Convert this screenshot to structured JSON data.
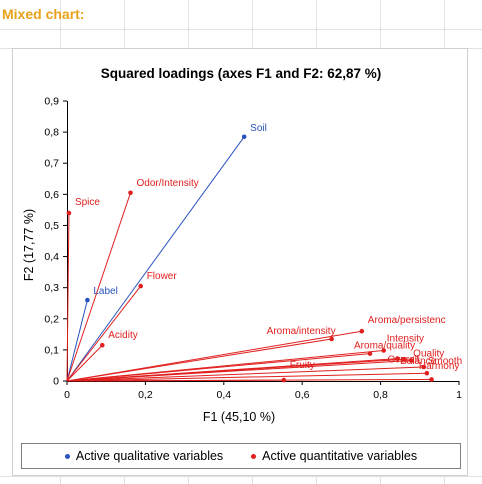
{
  "sheet": {
    "title": "Mixed chart:"
  },
  "colors": {
    "qualitative": "#2a52be",
    "quantitative": "#e0201f",
    "sheet_title": "#e8a21a"
  },
  "chart_data": {
    "type": "scatter",
    "title": "Squared loadings (axes F1 and F2: 62,87 %)",
    "xlabel": "F1 (45,10 %)",
    "ylabel": "F2 (17,77 %)",
    "xlim": [
      0,
      1
    ],
    "ylim": [
      0,
      0.9
    ],
    "x_ticks": [
      "0",
      "0,2",
      "0,4",
      "0,6",
      "0,8",
      "1"
    ],
    "y_ticks": [
      "0",
      "0,1",
      "0,2",
      "0,3",
      "0,4",
      "0,5",
      "0,6",
      "0,7",
      "0,8",
      "0,9"
    ],
    "rays_from_origin": true,
    "legend_position": "bottom",
    "series": [
      {
        "name": "Active qualitative variables",
        "points": [
          {
            "label": "Soil",
            "x": 0.452,
            "y": 0.785
          },
          {
            "label": "Label",
            "x": 0.052,
            "y": 0.26
          }
        ]
      },
      {
        "name": "Active quantitative variables",
        "points": [
          {
            "label": "Spice",
            "x": 0.005,
            "y": 0.54
          },
          {
            "label": "Odor/Intensity",
            "x": 0.162,
            "y": 0.605
          },
          {
            "label": "Flower",
            "x": 0.188,
            "y": 0.305
          },
          {
            "label": "Acidity",
            "x": 0.09,
            "y": 0.115
          },
          {
            "label": "Aroma/persistenc",
            "x": 0.752,
            "y": 0.16
          },
          {
            "label": "Aroma/intensity",
            "x": 0.675,
            "y": 0.135
          },
          {
            "label": "Intensity",
            "x": 0.808,
            "y": 0.098
          },
          {
            "label": "Aroma/quality",
            "x": 0.773,
            "y": 0.088
          },
          {
            "label": "Overall",
            "x": 0.843,
            "y": 0.072
          },
          {
            "label": "Quality",
            "x": 0.878,
            "y": 0.066
          },
          {
            "label": "Balance",
            "x": 0.86,
            "y": 0.07
          },
          {
            "label": "Smooth",
            "x": 0.91,
            "y": 0.045
          },
          {
            "label": "Harmony",
            "x": 0.918,
            "y": 0.025
          },
          {
            "label": "Fruity",
            "x": 0.553,
            "y": 0.003
          },
          {
            "label": "",
            "x": 0.93,
            "y": 0.005
          }
        ]
      }
    ]
  }
}
